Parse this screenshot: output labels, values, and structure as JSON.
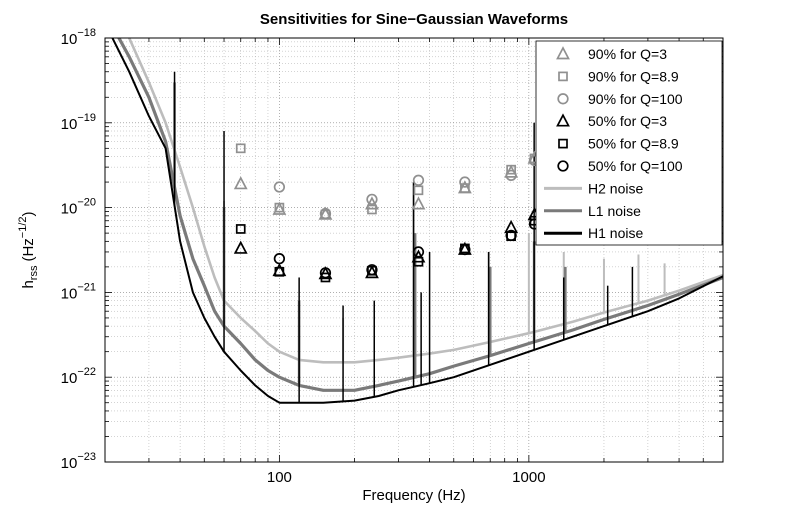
{
  "chart_data": {
    "type": "line",
    "title": "Sensitivities for Sine−Gaussian Waveforms",
    "xlabel": "Frequency (Hz)",
    "ylabel": "h_rss (Hz^-1/2)",
    "ylabel_main": "h",
    "ylabel_sub": "rss",
    "ylabel_unit": "(Hz",
    "ylabel_exp": "−1/2",
    "ylabel_close": ")",
    "xscale": "log",
    "yscale": "log",
    "xlim": [
      20,
      6000
    ],
    "ylim": [
      1e-23,
      1e-18
    ],
    "grid": true,
    "legend_position": "top-right",
    "x_ticks": [
      {
        "value": 100,
        "label": "100"
      },
      {
        "value": 1000,
        "label": "1000"
      }
    ],
    "y_ticks": [
      {
        "value": 1e-18,
        "base": "10",
        "exp": "−18"
      },
      {
        "value": 1e-19,
        "base": "10",
        "exp": "−19"
      },
      {
        "value": 1e-20,
        "base": "10",
        "exp": "−20"
      },
      {
        "value": 1e-21,
        "base": "10",
        "exp": "−21"
      },
      {
        "value": 1e-22,
        "base": "10",
        "exp": "−22"
      },
      {
        "value": 1e-23,
        "base": "10",
        "exp": "−23"
      }
    ],
    "series": [
      {
        "name": "H2 noise",
        "kind": "line",
        "color": "#bdbdbd",
        "width": 2.6,
        "x": [
          20,
          25,
          30,
          35,
          40,
          45,
          50,
          55,
          60,
          70,
          80,
          90,
          100,
          120,
          150,
          200,
          250,
          300,
          400,
          500,
          700,
          1000,
          1500,
          2000,
          3000,
          4000,
          6000
        ],
        "y": [
          2e-18,
          1e-18,
          3e-19,
          1e-19,
          3e-20,
          1e-20,
          3.5e-21,
          1.5e-21,
          8e-22,
          5e-22,
          3.5e-22,
          2.5e-22,
          2e-22,
          1.6e-22,
          1.5e-22,
          1.5e-22,
          1.6e-22,
          1.7e-22,
          1.9e-22,
          2.1e-22,
          2.6e-22,
          3.3e-22,
          4.5e-22,
          5.8e-22,
          8e-22,
          1.05e-21,
          1.6e-21
        ],
        "lines": [
          {
            "f": 60,
            "h": 1.2e-20
          },
          {
            "f": 120,
            "h": 6e-22
          },
          {
            "f": 180,
            "h": 5e-22
          },
          {
            "f": 345,
            "h": 2e-20
          },
          {
            "f": 690,
            "h": 3e-21
          },
          {
            "f": 1000,
            "h": 5e-21
          },
          {
            "f": 1380,
            "h": 3e-21
          },
          {
            "f": 2000,
            "h": 2.5e-21
          },
          {
            "f": 2750,
            "h": 2.8e-21
          },
          {
            "f": 3500,
            "h": 2.2e-21
          }
        ]
      },
      {
        "name": "L1 noise",
        "kind": "line",
        "color": "#7a7a7a",
        "width": 3.2,
        "x": [
          20,
          25,
          30,
          35,
          40,
          45,
          50,
          55,
          60,
          70,
          80,
          90,
          100,
          120,
          150,
          200,
          250,
          300,
          400,
          500,
          700,
          1000,
          1500,
          2000,
          3000,
          4000,
          6000
        ],
        "y": [
          2e-18,
          6e-19,
          2e-19,
          6e-20,
          8e-21,
          2.5e-21,
          1.2e-21,
          6e-22,
          4e-22,
          2.5e-22,
          1.6e-22,
          1.2e-22,
          1e-22,
          8e-23,
          7e-23,
          7e-23,
          8e-23,
          9e-23,
          1.1e-22,
          1.35e-22,
          1.8e-22,
          2.5e-22,
          3.6e-22,
          4.8e-22,
          7e-22,
          9.5e-22,
          1.5e-21
        ],
        "lines": [
          {
            "f": 38,
            "h": 3e-19
          },
          {
            "f": 60,
            "h": 1e-20
          },
          {
            "f": 120,
            "h": 8e-22
          },
          {
            "f": 350,
            "h": 5e-21
          },
          {
            "f": 700,
            "h": 2e-21
          },
          {
            "f": 1050,
            "h": 4e-21
          },
          {
            "f": 1400,
            "h": 2e-21
          }
        ]
      },
      {
        "name": "H1 noise",
        "kind": "line",
        "color": "#000000",
        "width": 2.0,
        "x": [
          20,
          25,
          30,
          35,
          40,
          45,
          50,
          55,
          60,
          70,
          80,
          90,
          100,
          120,
          150,
          200,
          250,
          300,
          400,
          500,
          700,
          1000,
          1500,
          2000,
          3000,
          4000,
          6000
        ],
        "y": [
          1.5e-18,
          4e-19,
          1.2e-19,
          5e-20,
          4e-21,
          1e-21,
          5e-22,
          3e-22,
          2e-22,
          1.2e-22,
          8e-23,
          6e-23,
          5e-23,
          5e-23,
          5e-23,
          5.3e-23,
          6e-23,
          7e-23,
          8.5e-23,
          1e-22,
          1.4e-22,
          2e-22,
          3e-22,
          4e-22,
          6e-22,
          8.5e-22,
          1.55e-21
        ],
        "lines": [
          {
            "f": 38,
            "h": 4e-19
          },
          {
            "f": 60,
            "h": 8e-20
          },
          {
            "f": 120,
            "h": 1.5e-21
          },
          {
            "f": 180,
            "h": 7e-22
          },
          {
            "f": 240,
            "h": 8e-22
          },
          {
            "f": 345,
            "h": 2e-20
          },
          {
            "f": 370,
            "h": 1e-21
          },
          {
            "f": 400,
            "h": 3e-21
          },
          {
            "f": 690,
            "h": 3e-21
          },
          {
            "f": 1050,
            "h": 1e-19
          },
          {
            "f": 1380,
            "h": 1.5e-21
          },
          {
            "f": 2070,
            "h": 1.2e-21
          },
          {
            "f": 2600,
            "h": 2e-21
          }
        ]
      },
      {
        "name": "90% for Q=3",
        "kind": "points",
        "marker": "triangle",
        "color": "#909090",
        "x": [
          70,
          100,
          153,
          235,
          361,
          554,
          849,
          1053
        ],
        "y": [
          1.9e-20,
          9.5e-21,
          8.3e-21,
          1.1e-20,
          1.1e-20,
          1.7e-20,
          2.6e-20,
          3.8e-20
        ]
      },
      {
        "name": "90% for Q=8.9",
        "kind": "points",
        "marker": "square",
        "color": "#909090",
        "x": [
          70,
          100,
          153,
          235,
          361,
          554,
          849,
          1053
        ],
        "y": [
          5e-20,
          1e-20,
          8.3e-21,
          9.5e-21,
          1.6e-20,
          1.7e-20,
          2.8e-20,
          3.8e-20
        ]
      },
      {
        "name": "90% for Q=100",
        "kind": "points",
        "marker": "circle",
        "color": "#909090",
        "x": [
          100,
          153,
          235,
          361,
          554,
          849,
          1053
        ],
        "y": [
          1.75e-20,
          8.5e-21,
          1.25e-20,
          2.1e-20,
          2e-20,
          2.4e-20,
          3.6e-20
        ]
      },
      {
        "name": "50% for Q=3",
        "kind": "points",
        "marker": "triangle",
        "color": "#000000",
        "x": [
          70,
          100,
          153,
          235,
          361,
          554,
          849,
          1053
        ],
        "y": [
          3.3e-21,
          1.8e-21,
          1.65e-21,
          1.7e-21,
          2.6e-21,
          3.2e-21,
          5.8e-21,
          8.2e-21
        ]
      },
      {
        "name": "50% for Q=8.9",
        "kind": "points",
        "marker": "square",
        "color": "#000000",
        "x": [
          70,
          100,
          153,
          235,
          361,
          554,
          849,
          1053
        ],
        "y": [
          5.6e-21,
          1.75e-21,
          1.5e-21,
          1.8e-21,
          2.3e-21,
          3.3e-21,
          4.6e-21,
          7e-21
        ]
      },
      {
        "name": "50% for Q=100",
        "kind": "points",
        "marker": "circle",
        "color": "#000000",
        "x": [
          100,
          153,
          235,
          361,
          554,
          849,
          1053
        ],
        "y": [
          2.5e-21,
          1.7e-21,
          1.85e-21,
          3e-21,
          3.2e-21,
          4.7e-21,
          6.4e-21
        ]
      }
    ],
    "legend": [
      {
        "label": "90% for Q=3",
        "marker": "triangle",
        "color": "#909090"
      },
      {
        "label": "90% for Q=8.9",
        "marker": "square",
        "color": "#909090"
      },
      {
        "label": "90% for Q=100",
        "marker": "circle",
        "color": "#909090"
      },
      {
        "label": "50% for Q=3",
        "marker": "triangle",
        "color": "#000000"
      },
      {
        "label": "50% for Q=8.9",
        "marker": "square",
        "color": "#000000"
      },
      {
        "label": "50% for Q=100",
        "marker": "circle",
        "color": "#000000"
      },
      {
        "label": "H2 noise",
        "marker": "line",
        "color": "#bdbdbd"
      },
      {
        "label": "L1 noise",
        "marker": "line",
        "color": "#7a7a7a"
      },
      {
        "label": "H1 noise",
        "marker": "line",
        "color": "#000000"
      }
    ]
  }
}
